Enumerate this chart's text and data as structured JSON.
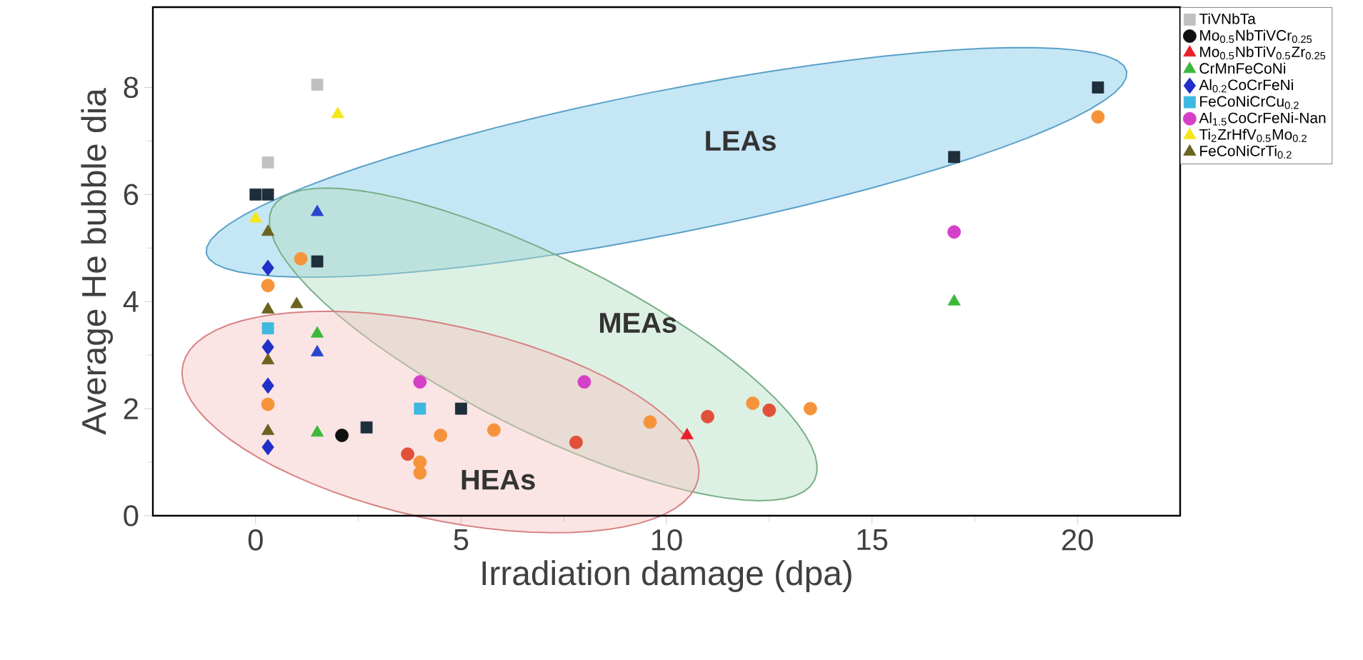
{
  "chart_data": {
    "type": "scatter",
    "xlabel": "Irradiation damage (dpa)",
    "ylabel": "Average He bubble dia",
    "xlim": [
      -2.5,
      22.5
    ],
    "ylim": [
      0,
      9.5
    ],
    "xticks": [
      0,
      5,
      10,
      15,
      20
    ],
    "yticks": [
      0,
      2,
      4,
      6,
      8
    ],
    "legend": "top right",
    "grid": false,
    "annotations": [
      "LEAs",
      "MEAs",
      "HEAs"
    ],
    "series": [
      {
        "name": "TiVNbTa",
        "color": "#c0c0c0",
        "marker": "square",
        "x": [
          0.3,
          1.5
        ],
        "values": [
          6.6,
          8.05
        ]
      },
      {
        "name": "Mo$_{0.5}$NbTiVCr$_{0.25}$",
        "color": "#111111",
        "marker": "circle",
        "x": [
          2.1
        ],
        "values": [
          1.5
        ]
      },
      {
        "name": "Mo$_{0.5}$NbTiV$_{0.5}$Zr$_{0.25}$",
        "color": "#e8202a",
        "marker": "triangle",
        "x": [
          10.5
        ],
        "values": [
          1.5
        ]
      },
      {
        "name": "CrMnFeCoNi",
        "color": "#3cb83c",
        "marker": "triangle",
        "x": [
          1.5,
          1.5,
          17.0
        ],
        "values": [
          1.55,
          3.4,
          4.0
        ]
      },
      {
        "name": "Al$_{0.2}$CoCrFeNi",
        "color": "#1f2fc8",
        "marker": "diamond",
        "x": [
          0.3,
          0.3,
          0.3,
          0.3
        ],
        "values": [
          4.63,
          3.15,
          2.43,
          1.28
        ]
      },
      {
        "name": "FeCoNiCrCu$_{0.2}$",
        "color": "#3db8e0",
        "marker": "square",
        "x": [
          0.3,
          4.0
        ],
        "values": [
          3.5,
          2.0
        ]
      },
      {
        "name": "Al$_{1.5}$CoCrFeNi-Nan",
        "color": "#d63fc8",
        "marker": "circle",
        "x": [
          4.0,
          8.0,
          17.0
        ],
        "values": [
          2.5,
          2.5,
          5.3
        ]
      },
      {
        "name": "Ti$_{2}$ZrHfV$_{0.5}$Mo$_{0.2}$",
        "color": "#f5e61a",
        "marker": "triangle",
        "x": [
          2.0,
          0.0
        ],
        "values": [
          7.5,
          5.55
        ]
      },
      {
        "name": "FeCoNiCrTi$_{0.2}$",
        "color": "#6b6320",
        "marker": "triangle",
        "x": [
          0.3,
          0.3,
          0.3,
          0.3,
          1.0
        ],
        "values": [
          5.3,
          3.85,
          2.9,
          1.58,
          3.95
        ]
      },
      {
        "color": "#1e2e3a",
        "marker": "square",
        "x": [
          0.0,
          0.3,
          1.5,
          2.7,
          5.0,
          17.0,
          20.5
        ],
        "values": [
          6.0,
          6.0,
          4.75,
          1.65,
          2.0,
          6.7,
          8.0
        ]
      },
      {
        "color": "#f5933a",
        "marker": "circle",
        "x": [
          20.5,
          13.5,
          12.1,
          9.6,
          5.8,
          4.5,
          4.0,
          4.0,
          0.3,
          1.1,
          0.3
        ],
        "values": [
          7.45,
          2.0,
          2.1,
          1.75,
          1.6,
          1.5,
          1.0,
          0.8,
          2.08,
          4.8,
          4.3
        ]
      },
      {
        "color": "#e0503a",
        "marker": "circle",
        "x": [
          7.8,
          11.0,
          12.5,
          3.7
        ],
        "values": [
          1.37,
          1.85,
          1.97,
          1.15
        ]
      },
      {
        "color": "#2a45d0",
        "marker": "triangle",
        "x": [
          1.5,
          1.5
        ],
        "values": [
          5.67,
          3.05
        ]
      }
    ]
  }
}
